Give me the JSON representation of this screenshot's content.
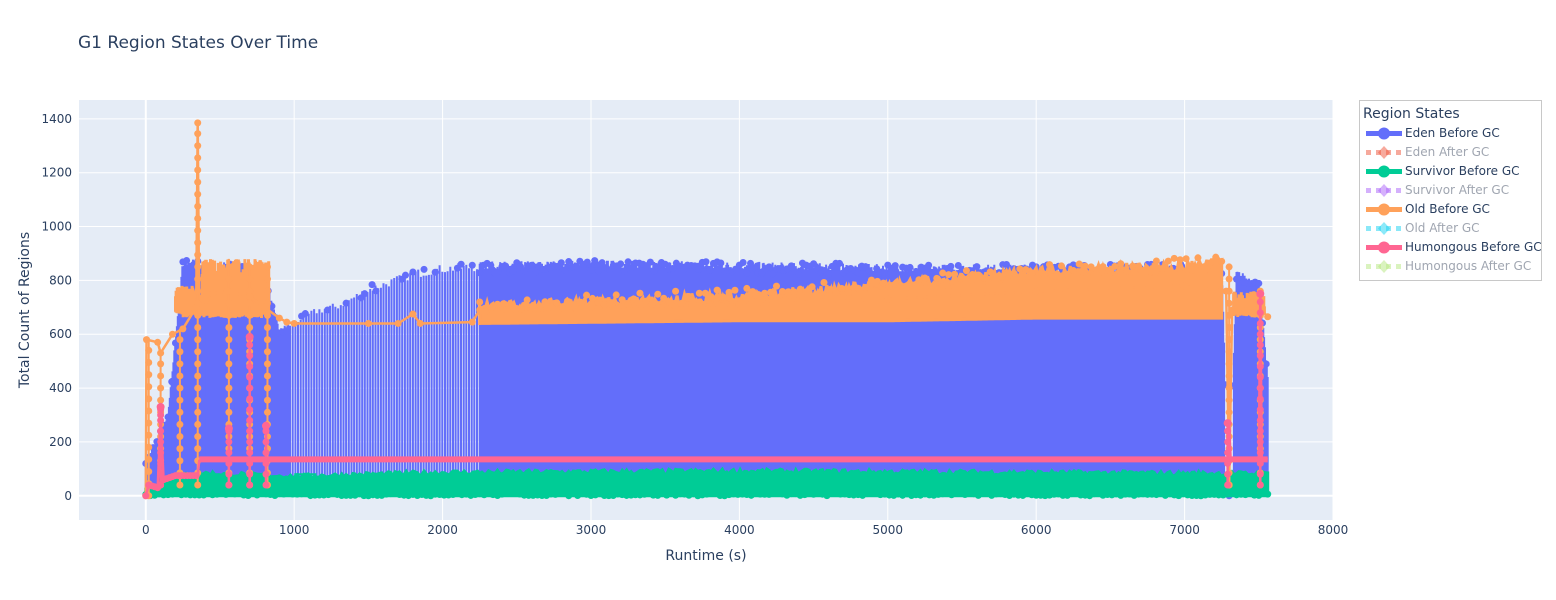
{
  "title": "G1 Region States Over Time",
  "colors": {
    "plot_bg": "#e5ecf6",
    "grid": "#ffffff",
    "text": "#2a3f5f",
    "legend_border": "#c8c8c8"
  },
  "legend": {
    "title": "Region States",
    "items": [
      {
        "label": "Eden Before GC",
        "color": "#636efa",
        "visible": true,
        "dash": false,
        "marker": "circle"
      },
      {
        "label": "Eden After GC",
        "color": "#ef553b",
        "visible": false,
        "dash": true,
        "marker": "diamond"
      },
      {
        "label": "Survivor Before GC",
        "color": "#00cc96",
        "visible": true,
        "dash": false,
        "marker": "circle"
      },
      {
        "label": "Survivor After GC",
        "color": "#ab63fa",
        "visible": false,
        "dash": true,
        "marker": "diamond"
      },
      {
        "label": "Old Before GC",
        "color": "#ffa15a",
        "visible": true,
        "dash": false,
        "marker": "circle"
      },
      {
        "label": "Old After GC",
        "color": "#19d3f3",
        "visible": false,
        "dash": true,
        "marker": "diamond"
      },
      {
        "label": "Humongous Before GC",
        "color": "#ff6692",
        "visible": true,
        "dash": false,
        "marker": "circle"
      },
      {
        "label": "Humongous After GC",
        "color": "#b6e880",
        "visible": false,
        "dash": true,
        "marker": "diamond"
      }
    ]
  },
  "chart_data": {
    "type": "line",
    "title": "G1 Region States Over Time",
    "xlabel": "Runtime (s)",
    "ylabel": "Total Count of Regions",
    "xlim": [
      -450,
      8000
    ],
    "ylim": [
      -90,
      1470
    ],
    "x_ticks": [
      0,
      1000,
      2000,
      3000,
      4000,
      5000,
      6000,
      7000,
      8000
    ],
    "y_ticks": [
      0,
      200,
      400,
      600,
      800,
      1000,
      1200,
      1400
    ],
    "grid": true,
    "legend_position": "right",
    "legend_title": "Region States",
    "mode": "lines+markers",
    "series": [
      {
        "name": "Eden Before GC",
        "description": "Sawtooth oscillating between ~0 and peak each GC cycle",
        "peak_envelope": [
          [
            0,
            120
          ],
          [
            150,
            300
          ],
          [
            250,
            880
          ],
          [
            350,
            880
          ],
          [
            450,
            820
          ],
          [
            550,
            880
          ],
          [
            700,
            850
          ],
          [
            800,
            830
          ],
          [
            900,
            620
          ],
          [
            1000,
            660
          ],
          [
            1150,
            700
          ],
          [
            1300,
            720
          ],
          [
            1500,
            780
          ],
          [
            1800,
            840
          ],
          [
            2000,
            860
          ],
          [
            2300,
            870
          ],
          [
            3000,
            875
          ],
          [
            4000,
            870
          ],
          [
            5000,
            860
          ],
          [
            6000,
            860
          ],
          [
            7000,
            860
          ],
          [
            7250,
            860
          ],
          [
            7300,
            0
          ],
          [
            7350,
            840
          ],
          [
            7500,
            800
          ],
          [
            7560,
            450
          ]
        ],
        "trough": 0
      },
      {
        "name": "Survivor Before GC",
        "description": "Dense band between ~0 and ~90 across runtime",
        "band": [
          [
            0,
            0,
            30
          ],
          [
            300,
            0,
            95
          ],
          [
            1000,
            0,
            80
          ],
          [
            2000,
            0,
            95
          ],
          [
            4000,
            0,
            100
          ],
          [
            7560,
            0,
            90
          ]
        ]
      },
      {
        "name": "Old Before GC",
        "points": [
          [
            0,
            0
          ],
          [
            5,
            580
          ],
          [
            80,
            570
          ],
          [
            100,
            530
          ],
          [
            180,
            600
          ],
          [
            250,
            620
          ],
          [
            340,
            700
          ],
          [
            350,
            1385
          ],
          [
            360,
            680
          ],
          [
            450,
            750
          ],
          [
            550,
            760
          ],
          [
            700,
            740
          ],
          [
            800,
            700
          ],
          [
            900,
            660
          ],
          [
            950,
            645
          ],
          [
            1000,
            640
          ],
          [
            1500,
            640
          ],
          [
            1700,
            640
          ],
          [
            1800,
            675
          ],
          [
            1850,
            640
          ],
          [
            2200,
            645
          ],
          [
            2250,
            690
          ],
          [
            3000,
            700
          ],
          [
            4000,
            710
          ],
          [
            5000,
            730
          ],
          [
            6000,
            760
          ],
          [
            7000,
            780
          ],
          [
            7280,
            760
          ],
          [
            7300,
            40
          ],
          [
            7320,
            690
          ],
          [
            7500,
            700
          ],
          [
            7560,
            665
          ]
        ],
        "band_upper": [
          [
            2250,
            720
          ],
          [
            4000,
            760
          ],
          [
            5000,
            800
          ],
          [
            6000,
            850
          ],
          [
            7250,
            880
          ]
        ],
        "band_lower": [
          [
            2250,
            640
          ],
          [
            4000,
            650
          ],
          [
            5000,
            650
          ],
          [
            6000,
            660
          ],
          [
            7250,
            660
          ]
        ]
      },
      {
        "name": "Humongous Before GC",
        "points": [
          [
            0,
            0
          ],
          [
            20,
            40
          ],
          [
            80,
            30
          ],
          [
            100,
            300
          ],
          [
            120,
            60
          ],
          [
            200,
            75
          ],
          [
            350,
            75
          ],
          [
            360,
            130
          ],
          [
            1000,
            135
          ],
          [
            2000,
            135
          ],
          [
            4000,
            135
          ],
          [
            6000,
            138
          ],
          [
            7290,
            138
          ],
          [
            7300,
            270
          ],
          [
            7310,
            138
          ],
          [
            7500,
            140
          ],
          [
            7510,
            750
          ],
          [
            7520,
            140
          ],
          [
            7560,
            135
          ]
        ],
        "spikes": [
          [
            100,
            330
          ],
          [
            560,
            250
          ],
          [
            700,
            590
          ],
          [
            810,
            260
          ],
          [
            7290,
            270
          ],
          [
            7510,
            750
          ]
        ]
      }
    ],
    "hidden_series": [
      "Eden After GC",
      "Survivor After GC",
      "Old After GC",
      "Humongous After GC"
    ]
  }
}
